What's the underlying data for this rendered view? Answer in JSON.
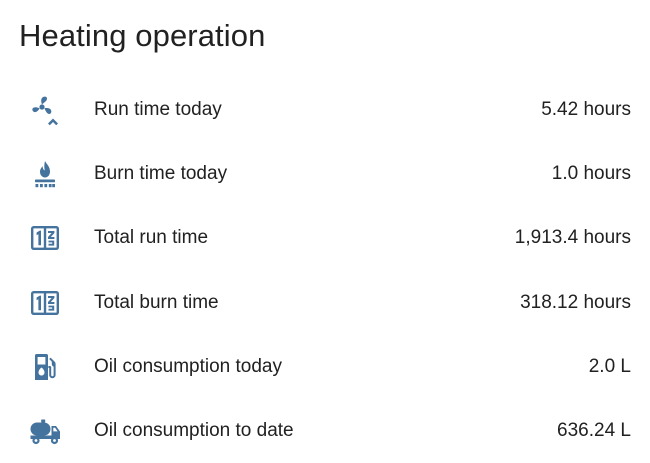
{
  "card": {
    "title": "Heating operation"
  },
  "colors": {
    "icon": "#44739e",
    "text": "#212121",
    "background": "#ffffff"
  },
  "rows": [
    {
      "icon": "fan-chevron-up-icon",
      "label": "Run time today",
      "value": "5.42 hours"
    },
    {
      "icon": "gas-burner-icon",
      "label": "Burn time today",
      "value": "1.0 hours"
    },
    {
      "icon": "counter-icon",
      "label": "Total run time",
      "value": "1,913.4 hours"
    },
    {
      "icon": "counter-icon",
      "label": "Total burn time",
      "value": "318.12 hours"
    },
    {
      "icon": "gas-station-icon",
      "label": "Oil consumption today",
      "value": "2.0 L"
    },
    {
      "icon": "tanker-truck-icon",
      "label": "Oil consumption to date",
      "value": "636.24 L"
    }
  ]
}
